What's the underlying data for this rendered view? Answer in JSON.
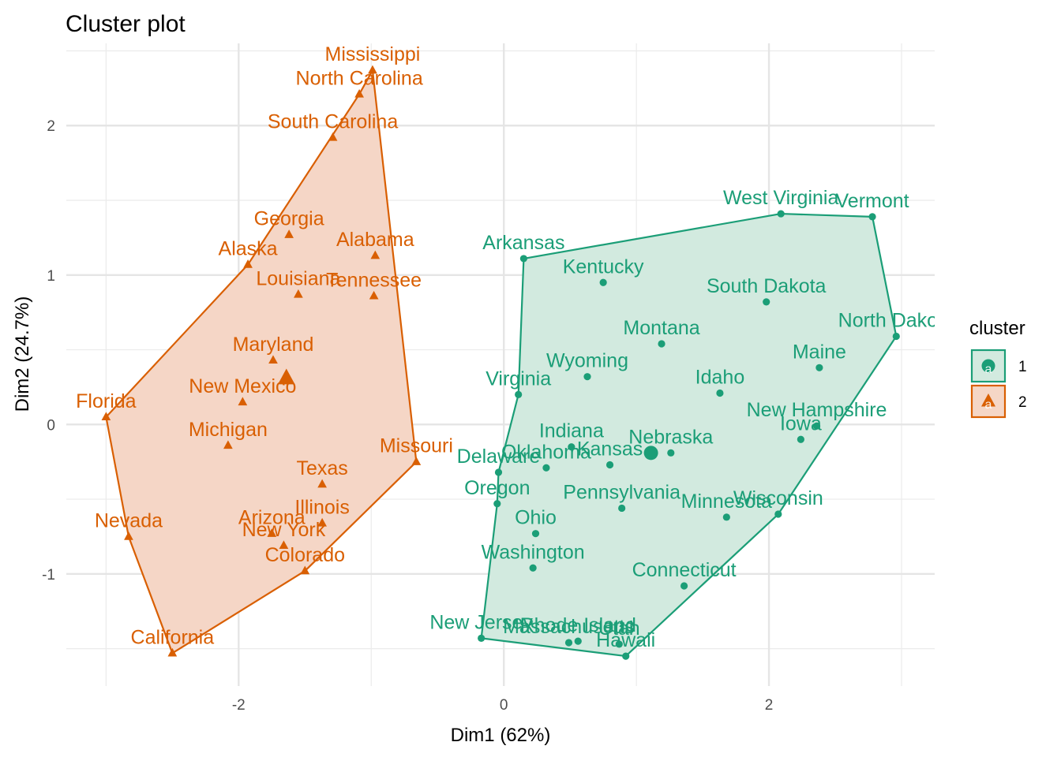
{
  "chart_data": {
    "type": "scatter",
    "title": "Cluster plot",
    "xlabel": "Dim1 (62%)",
    "ylabel": "Dim2 (24.7%)",
    "xlim": [
      -3.3,
      3.25
    ],
    "ylim": [
      -1.75,
      2.55
    ],
    "x_ticks": [
      -2,
      0,
      2
    ],
    "y_ticks": [
      -1,
      0,
      1,
      2
    ],
    "x_tick_labels": [
      "-2",
      "0",
      "2"
    ],
    "y_tick_labels": [
      "-1",
      "0",
      "1",
      "2"
    ],
    "grid": true,
    "legend": {
      "title": "cluster",
      "position": "right",
      "glyph": "a",
      "items": [
        {
          "label": "1",
          "color": "#1b9e77",
          "fill": "#d2eadf",
          "shape": "circle"
        },
        {
          "label": "2",
          "color": "#d95f02",
          "fill": "#f5d6c6",
          "shape": "triangle"
        }
      ]
    },
    "series": [
      {
        "name": "1",
        "color": "#1b9e77",
        "shape": "circle",
        "hull": [
          "Arkansas",
          "West Virginia",
          "Vermont",
          "North Dakota",
          "Wisconsin",
          "Hawaii",
          "New Jersey",
          "Oregon",
          "Delaware",
          "Virginia"
        ],
        "center": {
          "x": 1.11,
          "y": -0.19
        },
        "points": [
          {
            "label": "Arkansas",
            "x": 0.15,
            "y": 1.11
          },
          {
            "label": "West Virginia",
            "x": 2.09,
            "y": 1.41
          },
          {
            "label": "Vermont",
            "x": 2.78,
            "y": 1.39
          },
          {
            "label": "North Dakota",
            "x": 2.96,
            "y": 0.59
          },
          {
            "label": "Kentucky",
            "x": 0.75,
            "y": 0.95
          },
          {
            "label": "South Dakota",
            "x": 1.98,
            "y": 0.82
          },
          {
            "label": "Montana",
            "x": 1.19,
            "y": 0.54
          },
          {
            "label": "Maine",
            "x": 2.38,
            "y": 0.38
          },
          {
            "label": "Wyoming",
            "x": 0.63,
            "y": 0.32
          },
          {
            "label": "Idaho",
            "x": 1.63,
            "y": 0.21
          },
          {
            "label": "Virginia",
            "x": 0.11,
            "y": 0.2
          },
          {
            "label": "New Hampshire",
            "x": 2.36,
            "y": -0.01
          },
          {
            "label": "Iowa",
            "x": 2.24,
            "y": -0.1
          },
          {
            "label": "Indiana",
            "x": 0.51,
            "y": -0.15
          },
          {
            "label": "Nebraska",
            "x": 1.26,
            "y": -0.19
          },
          {
            "label": "Kansas",
            "x": 0.8,
            "y": -0.27
          },
          {
            "label": "Oklahoma",
            "x": 0.32,
            "y": -0.29
          },
          {
            "label": "Delaware",
            "x": -0.04,
            "y": -0.32
          },
          {
            "label": "Oregon",
            "x": -0.05,
            "y": -0.53
          },
          {
            "label": "Pennsylvania",
            "x": 0.89,
            "y": -0.56
          },
          {
            "label": "Wisconsin",
            "x": 2.07,
            "y": -0.6
          },
          {
            "label": "Minnesota",
            "x": 1.68,
            "y": -0.62
          },
          {
            "label": "Ohio",
            "x": 0.24,
            "y": -0.73
          },
          {
            "label": "Washington",
            "x": 0.22,
            "y": -0.96
          },
          {
            "label": "Connecticut",
            "x": 1.36,
            "y": -1.08
          },
          {
            "label": "New Jersey",
            "x": -0.17,
            "y": -1.43
          },
          {
            "label": "Massachusetts",
            "x": 0.49,
            "y": -1.46
          },
          {
            "label": "Rhode Island",
            "x": 0.56,
            "y": -1.45
          },
          {
            "label": "Utah",
            "x": 0.87,
            "y": -1.47
          },
          {
            "label": "Hawaii",
            "x": 0.92,
            "y": -1.55
          }
        ]
      },
      {
        "name": "2",
        "color": "#d95f02",
        "shape": "triangle",
        "hull": [
          "Mississippi",
          "Missouri",
          "Colorado",
          "California",
          "Nevada",
          "Florida",
          "Alaska",
          "North Carolina"
        ],
        "center": {
          "x": -1.64,
          "y": 0.31
        },
        "points": [
          {
            "label": "Mississippi",
            "x": -0.99,
            "y": 2.37
          },
          {
            "label": "North Carolina",
            "x": -1.09,
            "y": 2.21
          },
          {
            "label": "South Carolina",
            "x": -1.29,
            "y": 1.92
          },
          {
            "label": "Georgia",
            "x": -1.62,
            "y": 1.27
          },
          {
            "label": "Alabama",
            "x": -0.97,
            "y": 1.13
          },
          {
            "label": "Alaska",
            "x": -1.93,
            "y": 1.07
          },
          {
            "label": "Louisiana",
            "x": -1.55,
            "y": 0.87
          },
          {
            "label": "Tennessee",
            "x": -0.98,
            "y": 0.86
          },
          {
            "label": "Maryland",
            "x": -1.74,
            "y": 0.43
          },
          {
            "label": "New Mexico",
            "x": -1.97,
            "y": 0.15
          },
          {
            "label": "Florida",
            "x": -3.0,
            "y": 0.05
          },
          {
            "label": "Michigan",
            "x": -2.08,
            "y": -0.14
          },
          {
            "label": "Missouri",
            "x": -0.66,
            "y": -0.25
          },
          {
            "label": "Texas",
            "x": -1.37,
            "y": -0.4
          },
          {
            "label": "Illinois",
            "x": -1.37,
            "y": -0.66
          },
          {
            "label": "Arizona",
            "x": -1.75,
            "y": -0.73
          },
          {
            "label": "New York",
            "x": -1.66,
            "y": -0.81
          },
          {
            "label": "Nevada",
            "x": -2.83,
            "y": -0.75
          },
          {
            "label": "Colorado",
            "x": -1.5,
            "y": -0.98
          },
          {
            "label": "California",
            "x": -2.5,
            "y": -1.53
          }
        ]
      }
    ]
  }
}
